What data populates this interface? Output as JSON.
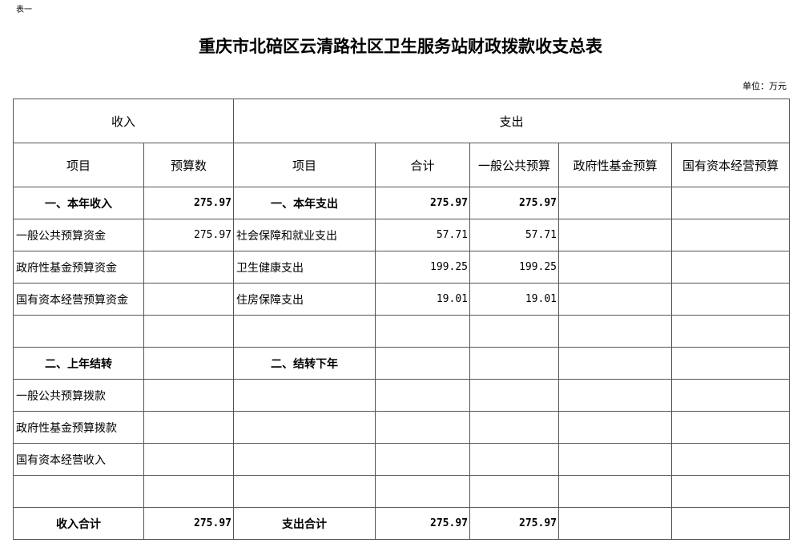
{
  "note": "表一",
  "title": "重庆市北碚区云清路社区卫生服务站财政拨款收支总表",
  "unit": "单位：万元",
  "header": {
    "income": "收入",
    "expense": "支出",
    "item": "项目",
    "budget": "预算数",
    "item2": "项目",
    "total": "合计",
    "general": "一般公共预算",
    "gov_fund": "政府性基金预算",
    "state_capital": "国有资本经营预算"
  },
  "rows": [
    {
      "in_item": "一、本年收入",
      "in_val": "275.97",
      "out_item": "一、本年支出",
      "total": "275.97",
      "general": "275.97",
      "gov": "",
      "state": "",
      "bold": true
    },
    {
      "in_item": "一般公共预算资金",
      "in_val": "275.97",
      "out_item": "社会保障和就业支出",
      "total": "57.71",
      "general": "57.71",
      "gov": "",
      "state": ""
    },
    {
      "in_item": "政府性基金预算资金",
      "in_val": "",
      "out_item": "卫生健康支出",
      "total": "199.25",
      "general": "199.25",
      "gov": "",
      "state": ""
    },
    {
      "in_item": "国有资本经营预算资金",
      "in_val": "",
      "out_item": "住房保障支出",
      "total": "19.01",
      "general": "19.01",
      "gov": "",
      "state": ""
    },
    {
      "in_item": "",
      "in_val": "",
      "out_item": "",
      "total": "",
      "general": "",
      "gov": "",
      "state": ""
    },
    {
      "in_item": "二、上年结转",
      "in_val": "",
      "out_item": "二、结转下年",
      "total": "",
      "general": "",
      "gov": "",
      "state": "",
      "bold": true
    },
    {
      "in_item": "一般公共预算拨款",
      "in_val": "",
      "out_item": "",
      "total": "",
      "general": "",
      "gov": "",
      "state": ""
    },
    {
      "in_item": "政府性基金预算拨款",
      "in_val": "",
      "out_item": "",
      "total": "",
      "general": "",
      "gov": "",
      "state": ""
    },
    {
      "in_item": "国有资本经营收入",
      "in_val": "",
      "out_item": "",
      "total": "",
      "general": "",
      "gov": "",
      "state": ""
    },
    {
      "in_item": "",
      "in_val": "",
      "out_item": "",
      "total": "",
      "general": "",
      "gov": "",
      "state": ""
    },
    {
      "in_item": "收入合计",
      "in_val": "275.97",
      "out_item": "支出合计",
      "total": "275.97",
      "general": "275.97",
      "gov": "",
      "state": "",
      "bold": true
    }
  ]
}
